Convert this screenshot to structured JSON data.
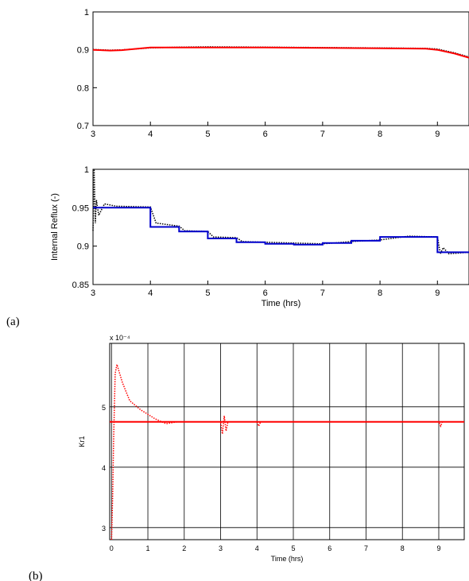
{
  "panel_labels": [
    "(a)",
    "(b)"
  ],
  "chart_data": [
    {
      "type": "line",
      "xlim": [
        3,
        9.55
      ],
      "ylim": [
        0.7,
        1
      ],
      "xticks": [
        3,
        4,
        5,
        6,
        7,
        8,
        9
      ],
      "yticks": [
        0.7,
        0.8,
        0.9,
        1
      ],
      "grid": false,
      "series": [
        {
          "color": "#000000",
          "style": "dotted",
          "x": [
            3,
            3.3,
            3.5,
            4,
            4.5,
            5,
            6,
            7,
            8,
            8.8,
            9,
            9.3,
            9.55
          ],
          "values": [
            0.901,
            0.899,
            0.9,
            0.905,
            0.907,
            0.908,
            0.907,
            0.906,
            0.905,
            0.904,
            0.902,
            0.892,
            0.881
          ]
        },
        {
          "color": "#ff0000",
          "style": "solid",
          "x": [
            3,
            3.3,
            3.5,
            4,
            4.5,
            5,
            6,
            7,
            8,
            8.8,
            9,
            9.3,
            9.55
          ],
          "values": [
            0.9,
            0.898,
            0.899,
            0.906,
            0.906,
            0.906,
            0.906,
            0.905,
            0.904,
            0.903,
            0.9,
            0.89,
            0.879
          ]
        }
      ]
    },
    {
      "type": "line",
      "xlim": [
        3,
        9.55
      ],
      "ylim": [
        0.85,
        1
      ],
      "xticks": [
        3,
        4,
        5,
        6,
        7,
        8,
        9
      ],
      "yticks": [
        0.85,
        0.9,
        0.95,
        1
      ],
      "grid": false,
      "ylabel": "Internal Reflux (-)",
      "xlabel": "Time (hrs)",
      "series": [
        {
          "color": "#000000",
          "style": "dotted",
          "x": [
            3,
            3.02,
            3.04,
            3.06,
            3.1,
            3.2,
            3.4,
            4,
            4.1,
            4.5,
            4.6,
            5,
            5.1,
            5.5,
            5.6,
            6,
            6.5,
            7,
            7.5,
            8,
            8.5,
            9,
            9.05,
            9.1,
            9.2,
            9.55
          ],
          "values": [
            0.92,
            1.0,
            0.93,
            0.96,
            0.94,
            0.955,
            0.952,
            0.951,
            0.93,
            0.926,
            0.92,
            0.919,
            0.912,
            0.911,
            0.906,
            0.905,
            0.904,
            0.903,
            0.906,
            0.908,
            0.913,
            0.912,
            0.89,
            0.898,
            0.89,
            0.892
          ]
        },
        {
          "color": "#0000cc",
          "style": "solid",
          "x": [
            3,
            4,
            4,
            4.5,
            4.5,
            5,
            5,
            5.5,
            5.5,
            6,
            6,
            6.5,
            6.5,
            7,
            7,
            7.5,
            7.5,
            8,
            8,
            9,
            9,
            9.55
          ],
          "values": [
            0.95,
            0.95,
            0.925,
            0.925,
            0.919,
            0.919,
            0.91,
            0.91,
            0.905,
            0.905,
            0.903,
            0.903,
            0.902,
            0.902,
            0.904,
            0.904,
            0.907,
            0.907,
            0.912,
            0.912,
            0.892,
            0.892
          ]
        }
      ]
    },
    {
      "type": "line",
      "xlim": [
        -0.05,
        9.7
      ],
      "ylim": [
        2.8,
        6.05
      ],
      "xticks": [
        0,
        1,
        2,
        3,
        4,
        5,
        6,
        7,
        8,
        9
      ],
      "yticks": [
        3,
        4,
        5
      ],
      "grid": true,
      "ylabel": "Kr1",
      "xlabel": "Time (hrs)",
      "multiplier": "x 10⁻⁴",
      "series": [
        {
          "color": "#ff0000",
          "style": "solid",
          "x": [
            -0.05,
            9.7
          ],
          "values": [
            4.75,
            4.75
          ]
        },
        {
          "color": "#ff0000",
          "style": "dotted",
          "x": [
            0,
            0.03,
            0.06,
            0.1,
            0.15,
            0.3,
            0.5,
            0.8,
            1.2,
            1.5,
            1.8,
            2.5,
            3.0,
            3.05,
            3.1,
            3.15,
            3.2,
            4,
            4.05,
            4.1,
            9,
            9.05,
            9.1,
            9.7
          ],
          "values": [
            2.8,
            3.5,
            4.5,
            5.55,
            5.7,
            5.4,
            5.1,
            4.95,
            4.8,
            4.72,
            4.75,
            4.75,
            4.75,
            4.55,
            4.85,
            4.6,
            4.75,
            4.75,
            4.68,
            4.75,
            4.75,
            4.68,
            4.75,
            4.75
          ]
        }
      ]
    }
  ]
}
